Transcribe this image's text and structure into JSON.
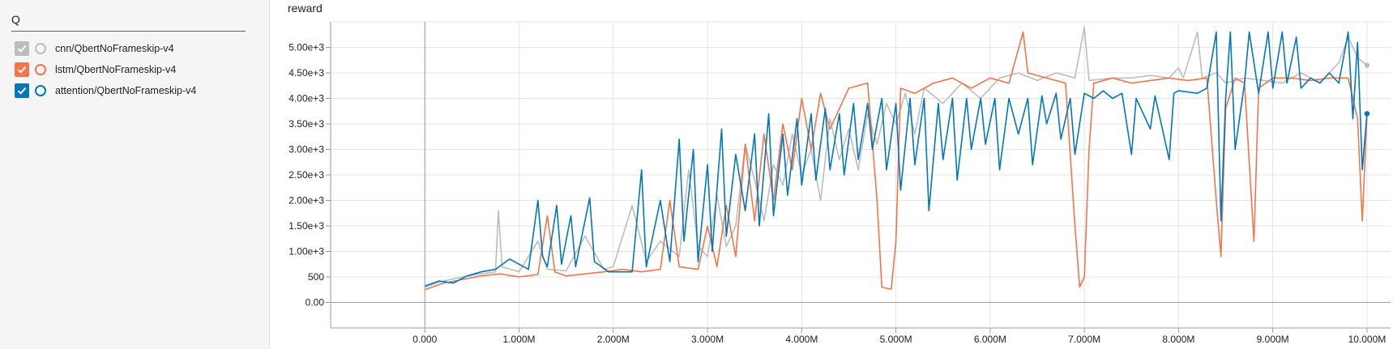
{
  "sidebar": {
    "search": {
      "value": "Q",
      "placeholder": ""
    },
    "runs": [
      {
        "label": "cnn/QbertNoFrameskip-v4",
        "color": "#bdbdbd",
        "checked": true,
        "check_bg": "#bdbdbd",
        "icon": "check-icon"
      },
      {
        "label": "lstm/QbertNoFrameskip-v4",
        "color": "#f4754a",
        "checked": true,
        "check_bg": "#f4754a",
        "icon": "check-icon"
      },
      {
        "label": "attention/QbertNoFrameskip-v4",
        "color": "#0277bd",
        "checked": true,
        "check_bg": "#0277bd",
        "icon": "check-icon"
      }
    ]
  },
  "chart_data": {
    "type": "line",
    "title": "reward",
    "xlabel": "",
    "ylabel": "",
    "x_ticks": [
      {
        "value": 0,
        "label": "0.000"
      },
      {
        "value": 1000000,
        "label": "1.000M"
      },
      {
        "value": 2000000,
        "label": "2.000M"
      },
      {
        "value": 3000000,
        "label": "3.000M"
      },
      {
        "value": 4000000,
        "label": "4.000M"
      },
      {
        "value": 5000000,
        "label": "5.000M"
      },
      {
        "value": 6000000,
        "label": "6.000M"
      },
      {
        "value": 7000000,
        "label": "7.000M"
      },
      {
        "value": 8000000,
        "label": "8.000M"
      },
      {
        "value": 9000000,
        "label": "9.000M"
      },
      {
        "value": 10000000,
        "label": "10.000M"
      }
    ],
    "y_ticks": [
      {
        "value": 0,
        "label": "0.00"
      },
      {
        "value": 500,
        "label": "500"
      },
      {
        "value": 1000,
        "label": "1.00e+3"
      },
      {
        "value": 1500,
        "label": "1.50e+3"
      },
      {
        "value": 2000,
        "label": "2.00e+3"
      },
      {
        "value": 2500,
        "label": "2.50e+3"
      },
      {
        "value": 3000,
        "label": "3.00e+3"
      },
      {
        "value": 3500,
        "label": "3.50e+3"
      },
      {
        "value": 4000,
        "label": "4.00e+3"
      },
      {
        "value": 4500,
        "label": "4.50e+3"
      },
      {
        "value": 5000,
        "label": "5.00e+3"
      }
    ],
    "xlim": [
      -1000000,
      10250000
    ],
    "ylim": [
      -500,
      5500
    ],
    "grid": true,
    "series": [
      {
        "name": "cnn/QbertNoFrameskip-v4",
        "color": "#bdbdbd",
        "points": [
          [
            0,
            300
          ],
          [
            200000,
            420
          ],
          [
            400000,
            500
          ],
          [
            600000,
            560
          ],
          [
            750000,
            600
          ],
          [
            780000,
            1800
          ],
          [
            820000,
            700
          ],
          [
            1000000,
            600
          ],
          [
            1200000,
            1200
          ],
          [
            1300000,
            650
          ],
          [
            1500000,
            620
          ],
          [
            1700000,
            1300
          ],
          [
            1900000,
            650
          ],
          [
            2000000,
            700
          ],
          [
            2200000,
            1900
          ],
          [
            2350000,
            800
          ],
          [
            2500000,
            1200
          ],
          [
            2700000,
            900
          ],
          [
            2800000,
            2600
          ],
          [
            2900000,
            1100
          ],
          [
            3000000,
            900
          ],
          [
            3100000,
            2100
          ],
          [
            3200000,
            1100
          ],
          [
            3300000,
            1500
          ],
          [
            3400000,
            3100
          ],
          [
            3500000,
            2400
          ],
          [
            3600000,
            1600
          ],
          [
            3700000,
            2700
          ],
          [
            3800000,
            2300
          ],
          [
            3900000,
            3300
          ],
          [
            4000000,
            2500
          ],
          [
            4100000,
            3000
          ],
          [
            4200000,
            2000
          ],
          [
            4300000,
            3600
          ],
          [
            4400000,
            2800
          ],
          [
            4500000,
            3400
          ],
          [
            4600000,
            2600
          ],
          [
            4700000,
            3700
          ],
          [
            4800000,
            3100
          ],
          [
            4900000,
            3900
          ],
          [
            5000000,
            3500
          ],
          [
            5100000,
            4100
          ],
          [
            5200000,
            3300
          ],
          [
            5300000,
            4200
          ],
          [
            5500000,
            3900
          ],
          [
            5700000,
            4300
          ],
          [
            5900000,
            4000
          ],
          [
            6100000,
            4400
          ],
          [
            6300000,
            4500
          ],
          [
            6500000,
            4350
          ],
          [
            6700000,
            4500
          ],
          [
            6900000,
            4400
          ],
          [
            7000000,
            5400
          ],
          [
            7050000,
            4350
          ],
          [
            7300000,
            4400
          ],
          [
            7500000,
            4400
          ],
          [
            7700000,
            4450
          ],
          [
            7900000,
            4400
          ],
          [
            8000000,
            4600
          ],
          [
            8050000,
            4400
          ],
          [
            8200000,
            5300
          ],
          [
            8250000,
            4400
          ],
          [
            8400000,
            4500
          ],
          [
            8500000,
            4300
          ],
          [
            8700000,
            4400
          ],
          [
            8900000,
            4350
          ],
          [
            9100000,
            4300
          ],
          [
            9300000,
            4500
          ],
          [
            9500000,
            4300
          ],
          [
            9700000,
            4700
          ],
          [
            9800000,
            5200
          ],
          [
            9900000,
            4800
          ],
          [
            10000000,
            4650
          ]
        ]
      },
      {
        "name": "lstm/QbertNoFrameskip-v4",
        "color": "#f4754a",
        "points": [
          [
            0,
            250
          ],
          [
            200000,
            380
          ],
          [
            400000,
            450
          ],
          [
            600000,
            520
          ],
          [
            800000,
            560
          ],
          [
            1000000,
            500
          ],
          [
            1200000,
            550
          ],
          [
            1300000,
            1700
          ],
          [
            1380000,
            600
          ],
          [
            1500000,
            520
          ],
          [
            1700000,
            560
          ],
          [
            1900000,
            600
          ],
          [
            2100000,
            650
          ],
          [
            2300000,
            600
          ],
          [
            2500000,
            650
          ],
          [
            2600000,
            2000
          ],
          [
            2700000,
            700
          ],
          [
            2900000,
            650
          ],
          [
            3000000,
            1500
          ],
          [
            3100000,
            700
          ],
          [
            3200000,
            1900
          ],
          [
            3300000,
            900
          ],
          [
            3400000,
            3100
          ],
          [
            3500000,
            1600
          ],
          [
            3600000,
            3300
          ],
          [
            3700000,
            2000
          ],
          [
            3800000,
            3500
          ],
          [
            3900000,
            2600
          ],
          [
            4000000,
            4000
          ],
          [
            4100000,
            3000
          ],
          [
            4200000,
            4100
          ],
          [
            4300000,
            3400
          ],
          [
            4500000,
            4200
          ],
          [
            4700000,
            4300
          ],
          [
            4800000,
            2000
          ],
          [
            4850000,
            300
          ],
          [
            4950000,
            260
          ],
          [
            5000000,
            1200
          ],
          [
            5050000,
            4200
          ],
          [
            5200000,
            4100
          ],
          [
            5400000,
            4300
          ],
          [
            5600000,
            4400
          ],
          [
            5800000,
            4200
          ],
          [
            6000000,
            4400
          ],
          [
            6200000,
            4300
          ],
          [
            6350000,
            5300
          ],
          [
            6400000,
            4500
          ],
          [
            6600000,
            4400
          ],
          [
            6800000,
            4300
          ],
          [
            6900000,
            1500
          ],
          [
            6950000,
            300
          ],
          [
            7000000,
            500
          ],
          [
            7050000,
            3000
          ],
          [
            7100000,
            4300
          ],
          [
            7300000,
            4400
          ],
          [
            7500000,
            4300
          ],
          [
            7700000,
            4350
          ],
          [
            7900000,
            4400
          ],
          [
            8100000,
            4350
          ],
          [
            8300000,
            4400
          ],
          [
            8400000,
            2000
          ],
          [
            8450000,
            900
          ],
          [
            8500000,
            3800
          ],
          [
            8600000,
            4400
          ],
          [
            8700000,
            4300
          ],
          [
            8800000,
            1200
          ],
          [
            8850000,
            4200
          ],
          [
            9000000,
            4400
          ],
          [
            9200000,
            4400
          ],
          [
            9400000,
            4350
          ],
          [
            9600000,
            4400
          ],
          [
            9800000,
            4400
          ],
          [
            9900000,
            3600
          ],
          [
            9950000,
            1600
          ],
          [
            10000000,
            3700
          ]
        ]
      },
      {
        "name": "attention/QbertNoFrameskip-v4",
        "color": "#0277bd",
        "points": [
          [
            0,
            320
          ],
          [
            150000,
            420
          ],
          [
            300000,
            380
          ],
          [
            450000,
            520
          ],
          [
            600000,
            600
          ],
          [
            750000,
            650
          ],
          [
            900000,
            850
          ],
          [
            1000000,
            750
          ],
          [
            1100000,
            650
          ],
          [
            1200000,
            2000
          ],
          [
            1250000,
            900
          ],
          [
            1300000,
            700
          ],
          [
            1400000,
            1900
          ],
          [
            1450000,
            750
          ],
          [
            1550000,
            1700
          ],
          [
            1600000,
            700
          ],
          [
            1750000,
            2050
          ],
          [
            1800000,
            800
          ],
          [
            1950000,
            600
          ],
          [
            2100000,
            600
          ],
          [
            2200000,
            600
          ],
          [
            2300000,
            2600
          ],
          [
            2350000,
            700
          ],
          [
            2500000,
            2000
          ],
          [
            2600000,
            800
          ],
          [
            2700000,
            3200
          ],
          [
            2750000,
            1200
          ],
          [
            2850000,
            3000
          ],
          [
            2900000,
            800
          ],
          [
            3000000,
            2700
          ],
          [
            3050000,
            1000
          ],
          [
            3150000,
            3400
          ],
          [
            3200000,
            1300
          ],
          [
            3300000,
            2900
          ],
          [
            3400000,
            1800
          ],
          [
            3500000,
            3300
          ],
          [
            3550000,
            1500
          ],
          [
            3650000,
            3700
          ],
          [
            3700000,
            1700
          ],
          [
            3800000,
            3300
          ],
          [
            3850000,
            2100
          ],
          [
            3950000,
            3600
          ],
          [
            4000000,
            2300
          ],
          [
            4100000,
            3700
          ],
          [
            4150000,
            2400
          ],
          [
            4250000,
            3800
          ],
          [
            4300000,
            2600
          ],
          [
            4400000,
            3700
          ],
          [
            4450000,
            2500
          ],
          [
            4550000,
            3900
          ],
          [
            4600000,
            2800
          ],
          [
            4700000,
            3900
          ],
          [
            4750000,
            3000
          ],
          [
            4850000,
            4000
          ],
          [
            4900000,
            2600
          ],
          [
            5000000,
            3900
          ],
          [
            5050000,
            2200
          ],
          [
            5150000,
            4000
          ],
          [
            5200000,
            2700
          ],
          [
            5300000,
            4000
          ],
          [
            5350000,
            1800
          ],
          [
            5450000,
            3900
          ],
          [
            5500000,
            2800
          ],
          [
            5600000,
            4000
          ],
          [
            5650000,
            2400
          ],
          [
            5750000,
            4000
          ],
          [
            5800000,
            3000
          ],
          [
            5900000,
            4000
          ],
          [
            5950000,
            3100
          ],
          [
            6050000,
            4000
          ],
          [
            6100000,
            2600
          ],
          [
            6200000,
            4000
          ],
          [
            6300000,
            3300
          ],
          [
            6400000,
            4000
          ],
          [
            6450000,
            2700
          ],
          [
            6550000,
            4050
          ],
          [
            6600000,
            3500
          ],
          [
            6700000,
            4100
          ],
          [
            6750000,
            3200
          ],
          [
            6850000,
            4000
          ],
          [
            6900000,
            2900
          ],
          [
            7000000,
            4100
          ],
          [
            7100000,
            4000
          ],
          [
            7200000,
            4150
          ],
          [
            7300000,
            4000
          ],
          [
            7400000,
            4100
          ],
          [
            7500000,
            2900
          ],
          [
            7550000,
            4000
          ],
          [
            7700000,
            3400
          ],
          [
            7750000,
            4050
          ],
          [
            7900000,
            2800
          ],
          [
            7950000,
            4100
          ],
          [
            8000000,
            4150
          ],
          [
            8200000,
            4100
          ],
          [
            8300000,
            4200
          ],
          [
            8400000,
            5300
          ],
          [
            8450000,
            1600
          ],
          [
            8500000,
            4000
          ],
          [
            8550000,
            5300
          ],
          [
            8600000,
            3000
          ],
          [
            8700000,
            4300
          ],
          [
            8750000,
            5300
          ],
          [
            8850000,
            4100
          ],
          [
            8950000,
            5300
          ],
          [
            9000000,
            4200
          ],
          [
            9100000,
            5300
          ],
          [
            9150000,
            4300
          ],
          [
            9250000,
            5200
          ],
          [
            9300000,
            4200
          ],
          [
            9400000,
            4400
          ],
          [
            9500000,
            4300
          ],
          [
            9600000,
            4500
          ],
          [
            9700000,
            4300
          ],
          [
            9800000,
            5300
          ],
          [
            9850000,
            3600
          ],
          [
            9900000,
            5100
          ],
          [
            9950000,
            2600
          ],
          [
            10000000,
            3700
          ]
        ]
      }
    ]
  }
}
